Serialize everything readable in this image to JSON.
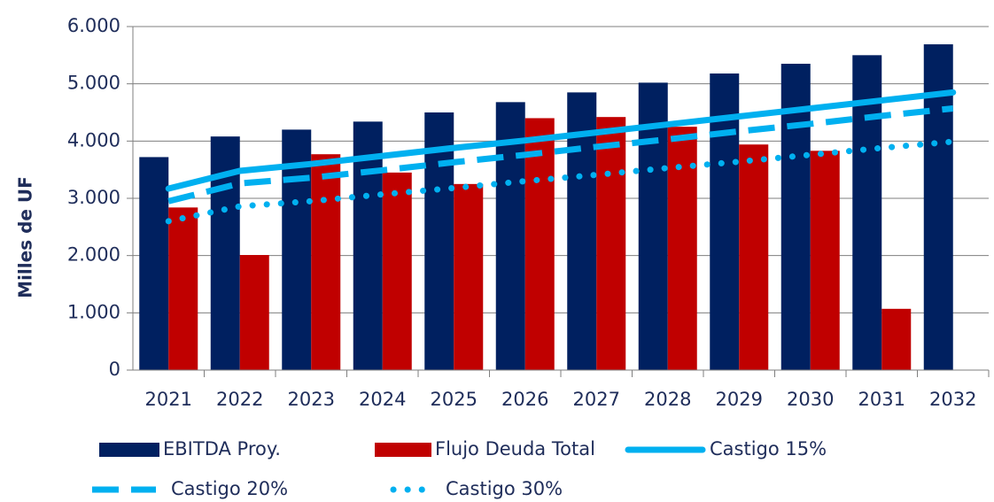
{
  "chart_data": {
    "type": "bar",
    "y_label": "Milles de UF",
    "categories": [
      "2021",
      "2022",
      "2023",
      "2024",
      "2025",
      "2026",
      "2027",
      "2028",
      "2029",
      "2030",
      "2031",
      "2032"
    ],
    "series": [
      {
        "name": "EBITDA Proy.",
        "type": "bar",
        "color": "#002060",
        "values": [
          3720,
          4080,
          4200,
          4340,
          4500,
          4680,
          4850,
          5020,
          5180,
          5350,
          5500,
          5690
        ]
      },
      {
        "name": "Flujo Deuda Total",
        "type": "bar",
        "color": "#c00000",
        "values": [
          2840,
          2010,
          3770,
          3450,
          3250,
          4400,
          4420,
          4250,
          3940,
          3830,
          1070,
          null
        ]
      },
      {
        "name": "Castigo 15%",
        "type": "line",
        "style": "solid",
        "color": "#00b0f0",
        "values": [
          3170,
          3480,
          3600,
          3740,
          3880,
          4010,
          4150,
          4290,
          4430,
          4570,
          4710,
          4850
        ]
      },
      {
        "name": "Castigo 20%",
        "type": "line",
        "style": "dashed",
        "color": "#00b0f0",
        "values": [
          2950,
          3260,
          3360,
          3490,
          3630,
          3760,
          3900,
          4030,
          4170,
          4300,
          4440,
          4570
        ]
      },
      {
        "name": "Castigo 30%",
        "type": "line",
        "style": "dotted",
        "color": "#00b0f0",
        "values": [
          2600,
          2860,
          2950,
          3070,
          3180,
          3300,
          3410,
          3530,
          3640,
          3760,
          3880,
          3990
        ]
      }
    ],
    "ylim": [
      0,
      6000
    ],
    "yticks": [
      0,
      {
        "value": 1000,
        "label": "1.000"
      },
      {
        "value": 2000,
        "label": "2.000"
      },
      {
        "value": 3000,
        "label": "3.000"
      },
      {
        "value": 4000,
        "label": "4.000"
      },
      {
        "value": 5000,
        "label": "5.000"
      },
      {
        "value": 6000,
        "label": "6.000"
      }
    ],
    "grid": true
  }
}
